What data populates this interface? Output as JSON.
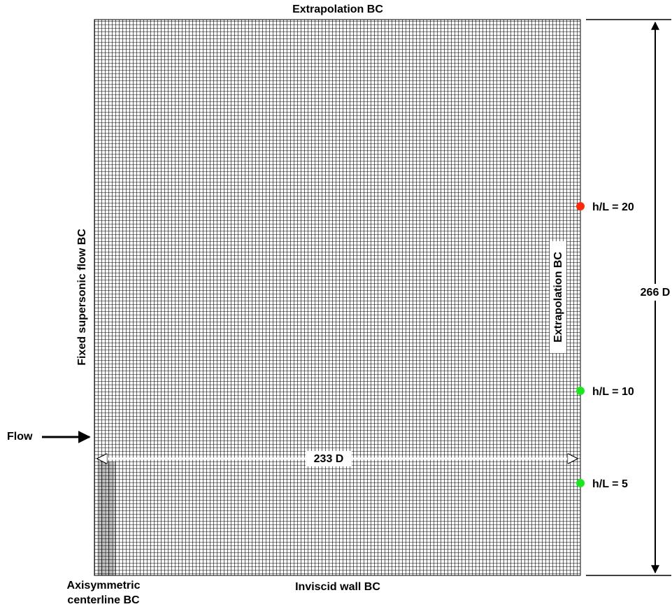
{
  "labels": {
    "top_bc": "Extrapolation BC",
    "left_bc": "Fixed supersonic flow BC",
    "right_bc": "Extrapolation BC",
    "bottom_bc": "Inviscid wall BC",
    "centerline_bc": [
      "Axisymmetric",
      "centerline BC"
    ],
    "flow": "Flow",
    "width": "233 D",
    "height": "266 D",
    "probes": [
      "h/L = 20",
      "h/L = 10",
      "h/L = 5"
    ]
  }
}
